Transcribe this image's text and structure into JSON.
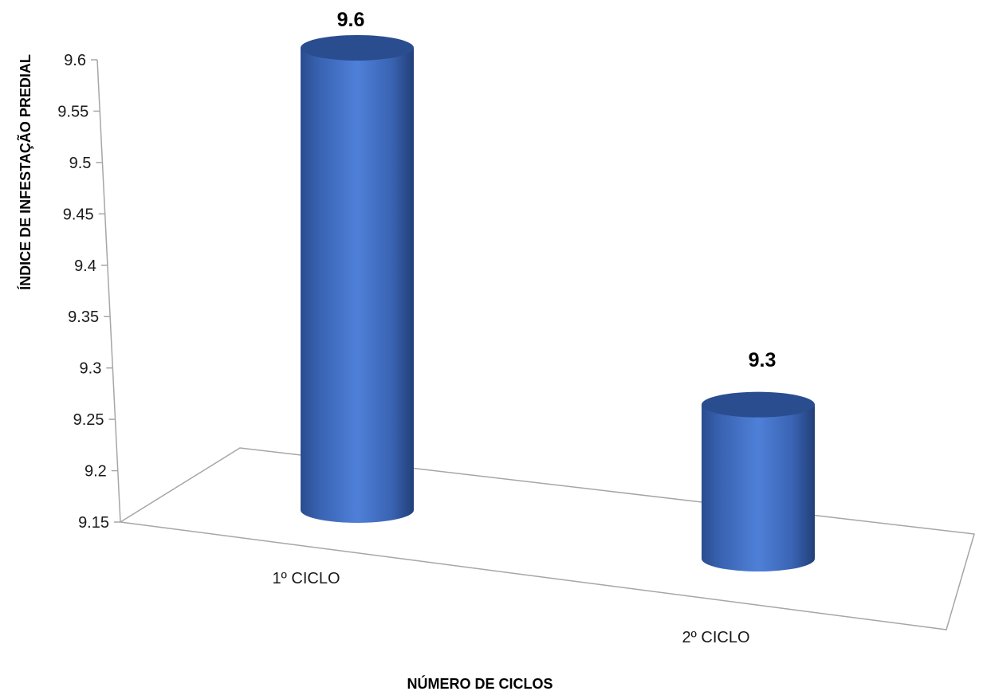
{
  "chart_data": {
    "type": "bar",
    "style": "3d-cylinder",
    "categories": [
      "1º CICLO",
      "2º CICLO"
    ],
    "values": [
      9.6,
      9.3
    ],
    "data_labels": [
      "9.6",
      "9.3"
    ],
    "xlabel": "NÚMERO DE CICLOS",
    "ylabel": "ÍNDICE DE INFESTAÇÃO PREDIAL",
    "ylim": [
      9.15,
      9.6
    ],
    "yticks": [
      "9.6",
      "9.55",
      "9.5",
      "9.45",
      "9.4",
      "9.35",
      "9.3",
      "9.25",
      "9.2",
      "9.15"
    ],
    "grid": false,
    "legend": "none",
    "colors": {
      "bar": "#4472c4",
      "bar_dark": "#2a4d8f",
      "axis": "#a6a6a6"
    }
  }
}
